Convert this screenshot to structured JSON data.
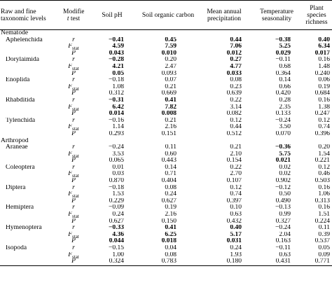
{
  "header": {
    "columns": [
      "Raw and fine taxonomic levels",
      {
        "text": "Modified ",
        "italic": "t",
        "after": " test"
      },
      "Soil pH",
      "Soil organic carbon",
      "Mean annual precipitation",
      "Temperature seasonality",
      "Plant species richness"
    ]
  },
  "stat_labels": [
    {
      "symbol": "r"
    },
    {
      "symbol": "F",
      "subscript": "stat"
    },
    {
      "symbol": "P"
    }
  ],
  "groups": [
    {
      "name": "Nematode",
      "taxa": [
        {
          "name": "Aphelenchida",
          "rows": [
            {
              "values": [
                "−0.41",
                "0.45",
                "0.44",
                "−0.38",
                "0.40"
              ],
              "bold": [
                true,
                true,
                true,
                true,
                true
              ]
            },
            {
              "values": [
                "4.59",
                "7.59",
                "7.06",
                "5.25",
                "6.34"
              ],
              "bold": [
                true,
                true,
                true,
                true,
                true
              ]
            },
            {
              "values": [
                "0.043",
                "0.010",
                "0.012",
                "0.029",
                "0.017"
              ],
              "bold": [
                true,
                true,
                true,
                true,
                true
              ]
            }
          ]
        },
        {
          "name": "Dorylaimida",
          "rows": [
            {
              "values": [
                "−0.28",
                "0.20",
                "0.27",
                "−0.11",
                "0.16"
              ],
              "bold": [
                true,
                false,
                true,
                false,
                false
              ]
            },
            {
              "values": [
                "4.21",
                "2.47",
                "4.77",
                "0.68",
                "1.48"
              ],
              "bold": [
                true,
                false,
                true,
                false,
                false
              ]
            },
            {
              "values": [
                "0.05",
                "0.093",
                "0.033",
                "0.364",
                "0.240"
              ],
              "bold": [
                true,
                false,
                true,
                false,
                false
              ]
            }
          ]
        },
        {
          "name": "Enoplida",
          "rows": [
            {
              "values": [
                "−0.18",
                "0.07",
                "0.08",
                "0.14",
                "0.06"
              ],
              "bold": [
                false,
                false,
                false,
                false,
                false
              ]
            },
            {
              "values": [
                "1.08",
                "0.21",
                "0.23",
                "0.66",
                "0.19"
              ],
              "bold": [
                false,
                false,
                false,
                false,
                false
              ]
            },
            {
              "values": [
                "0.312",
                "0.669",
                "0.639",
                "0.420",
                "0.684"
              ],
              "bold": [
                false,
                false,
                false,
                false,
                false
              ]
            }
          ]
        },
        {
          "name": "Rhabditida",
          "rows": [
            {
              "values": [
                "−0.31",
                "0.41",
                "0.22",
                "0.28",
                "0.16"
              ],
              "bold": [
                true,
                true,
                false,
                false,
                false
              ]
            },
            {
              "values": [
                "6.42",
                "7.82",
                "3.14",
                "2.35",
                "1.38"
              ],
              "bold": [
                true,
                true,
                false,
                false,
                false
              ]
            },
            {
              "values": [
                "0.014",
                "0.008",
                "0.082",
                "0.133",
                "0.247"
              ],
              "bold": [
                true,
                true,
                false,
                false,
                false
              ]
            }
          ]
        },
        {
          "name": "Tylenchida",
          "rows": [
            {
              "values": [
                "−0.16",
                "0.21",
                "0.12",
                "−0.24",
                "0.12"
              ],
              "bold": [
                false,
                false,
                false,
                false,
                false
              ]
            },
            {
              "values": [
                "1.14",
                "2.16",
                "0.44",
                "3.50",
                "0.74"
              ],
              "bold": [
                false,
                false,
                false,
                false,
                false
              ]
            },
            {
              "values": [
                "0.293",
                "0.151",
                "0.512",
                "0.070",
                "0.396"
              ],
              "bold": [
                false,
                false,
                false,
                false,
                false
              ]
            }
          ]
        }
      ]
    },
    {
      "name": "Arthropod",
      "taxa": [
        {
          "name": "Araneae",
          "rows": [
            {
              "values": [
                "−0.24",
                "0.11",
                "0.21",
                "−0.36",
                "0.20"
              ],
              "bold": [
                false,
                false,
                false,
                true,
                false
              ]
            },
            {
              "values": [
                "3.53",
                "0.60",
                "2.10",
                "5.75",
                "1.54"
              ],
              "bold": [
                false,
                false,
                false,
                true,
                false
              ]
            },
            {
              "values": [
                "0.065",
                "0.443",
                "0.154",
                "0.021",
                "0.221"
              ],
              "bold": [
                false,
                false,
                false,
                true,
                false
              ]
            }
          ]
        },
        {
          "name": "Coleoptera",
          "rows": [
            {
              "values": [
                "0.01",
                "0.14",
                "0.22",
                "0.02",
                "0.12"
              ],
              "bold": [
                false,
                false,
                false,
                false,
                false
              ]
            },
            {
              "values": [
                "0.03",
                "0.71",
                "2.70",
                "0.02",
                "0.46"
              ],
              "bold": [
                false,
                false,
                false,
                false,
                false
              ]
            },
            {
              "values": [
                "0.870",
                "0.404",
                "0.107",
                "0.902",
                "0.503"
              ],
              "bold": [
                false,
                false,
                false,
                false,
                false
              ]
            }
          ]
        },
        {
          "name": "Diptera",
          "rows": [
            {
              "values": [
                "−0.18",
                "0.08",
                "0.12",
                "−0.12",
                "0.16"
              ],
              "bold": [
                false,
                false,
                false,
                false,
                false
              ]
            },
            {
              "values": [
                "1.53",
                "0.24",
                "0.74",
                "0.50",
                "1.06"
              ],
              "bold": [
                false,
                false,
                false,
                false,
                false
              ]
            },
            {
              "values": [
                "0.229",
                "0.627",
                "0.397",
                "0.490",
                "0.313"
              ],
              "bold": [
                false,
                false,
                false,
                false,
                false
              ]
            }
          ]
        },
        {
          "name": "Hemiptera",
          "rows": [
            {
              "values": [
                "−0.09",
                "0.19",
                "0.10",
                "−0.13",
                "0.16"
              ],
              "bold": [
                false,
                false,
                false,
                false,
                false
              ]
            },
            {
              "values": [
                "0.24",
                "2.16",
                "0.63",
                "0.99",
                "1.51"
              ],
              "bold": [
                false,
                false,
                false,
                false,
                false
              ]
            },
            {
              "values": [
                "0.627",
                "0.150",
                "0.432",
                "0.327",
                "0.224"
              ],
              "bold": [
                false,
                false,
                false,
                false,
                false
              ]
            }
          ]
        },
        {
          "name": "Hymenoptera",
          "rows": [
            {
              "values": [
                "−0.33",
                "0.41",
                "0.40",
                "−0.24",
                "0.11"
              ],
              "bold": [
                true,
                true,
                true,
                false,
                false
              ]
            },
            {
              "values": [
                "4.36",
                "6.25",
                "5.17",
                "2.04",
                "0.39"
              ],
              "bold": [
                true,
                true,
                true,
                false,
                false
              ]
            },
            {
              "values": [
                "0.044",
                "0.018",
                "0.031",
                "0.163",
                "0.537"
              ],
              "bold": [
                true,
                true,
                true,
                false,
                false
              ]
            }
          ]
        },
        {
          "name": "Isopoda",
          "rows": [
            {
              "values": [
                "−0.15",
                "0.04",
                "0.24",
                "−0.11",
                "0.05"
              ],
              "bold": [
                false,
                false,
                false,
                false,
                false
              ]
            },
            {
              "values": [
                "1.00",
                "0.08",
                "1.93",
                "0.63",
                "0.09"
              ],
              "bold": [
                false,
                false,
                false,
                false,
                false
              ]
            },
            {
              "values": [
                "0.324",
                "0.783",
                "0.180",
                "0.431",
                "0.771"
              ],
              "bold": [
                false,
                false,
                false,
                false,
                false
              ]
            }
          ]
        }
      ]
    }
  ]
}
